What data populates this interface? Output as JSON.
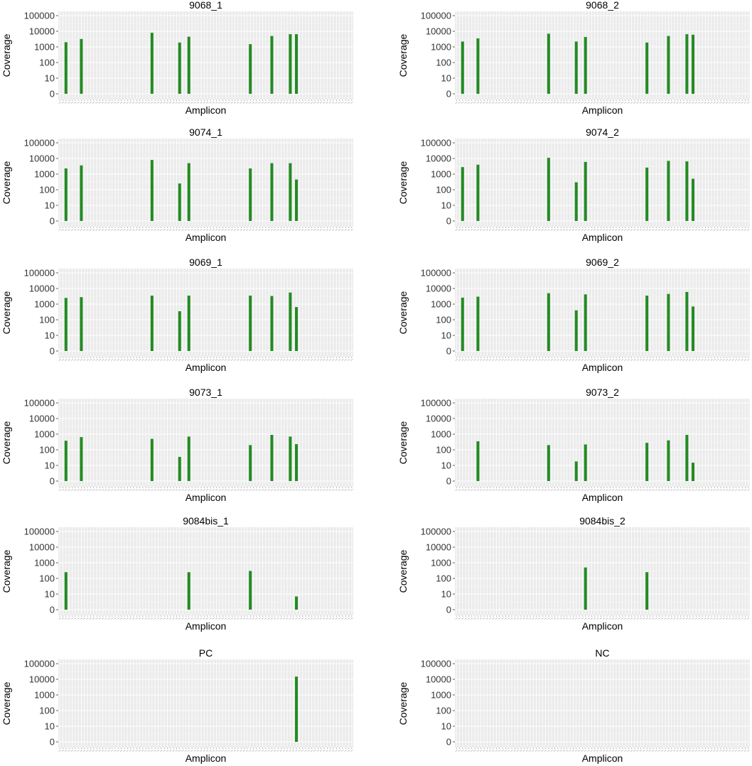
{
  "chart_data": {
    "type": "bar",
    "n_amplicons": 96,
    "x_label": "Amplicon",
    "y_label": "Coverage",
    "y_scale": "log",
    "y_ticks": [
      "0",
      "10",
      "100",
      "1000",
      "10000",
      "100000"
    ],
    "grid": true,
    "color": "#228B22",
    "panels": [
      {
        "title": "9068_1",
        "bars": [
          [
            2,
            2000
          ],
          [
            7,
            3200
          ],
          [
            30,
            8000
          ],
          [
            39,
            1900
          ],
          [
            42,
            4500
          ],
          [
            62,
            1500
          ],
          [
            69,
            5000
          ],
          [
            75,
            6500
          ],
          [
            77,
            6500
          ]
        ]
      },
      {
        "title": "9068_2",
        "bars": [
          [
            2,
            2200
          ],
          [
            7,
            3500
          ],
          [
            30,
            7000
          ],
          [
            39,
            2200
          ],
          [
            42,
            4300
          ],
          [
            62,
            1900
          ],
          [
            69,
            5000
          ],
          [
            75,
            6500
          ],
          [
            77,
            6000
          ]
        ]
      },
      {
        "title": "9074_1",
        "bars": [
          [
            2,
            2300
          ],
          [
            7,
            3600
          ],
          [
            30,
            8000
          ],
          [
            39,
            250
          ],
          [
            42,
            5000
          ],
          [
            62,
            2300
          ],
          [
            69,
            5000
          ],
          [
            75,
            5000
          ],
          [
            77,
            450
          ]
        ]
      },
      {
        "title": "9074_2",
        "bars": [
          [
            2,
            2800
          ],
          [
            7,
            4000
          ],
          [
            30,
            11000
          ],
          [
            39,
            300
          ],
          [
            42,
            6000
          ],
          [
            62,
            2600
          ],
          [
            69,
            7000
          ],
          [
            75,
            6500
          ],
          [
            77,
            500
          ]
        ]
      },
      {
        "title": "9069_1",
        "bars": [
          [
            2,
            2500
          ],
          [
            7,
            2800
          ],
          [
            30,
            3500
          ],
          [
            39,
            350
          ],
          [
            42,
            3500
          ],
          [
            62,
            3500
          ],
          [
            69,
            3300
          ],
          [
            75,
            5500
          ],
          [
            77,
            650
          ]
        ]
      },
      {
        "title": "9069_2",
        "bars": [
          [
            2,
            2600
          ],
          [
            7,
            3000
          ],
          [
            30,
            5000
          ],
          [
            39,
            400
          ],
          [
            42,
            4200
          ],
          [
            62,
            3500
          ],
          [
            69,
            4500
          ],
          [
            75,
            6000
          ],
          [
            77,
            700
          ]
        ]
      },
      {
        "title": "9073_1",
        "bars": [
          [
            2,
            380
          ],
          [
            7,
            650
          ],
          [
            30,
            500
          ],
          [
            39,
            35
          ],
          [
            42,
            700
          ],
          [
            62,
            200
          ],
          [
            69,
            900
          ],
          [
            75,
            700
          ],
          [
            77,
            230
          ]
        ]
      },
      {
        "title": "9073_2",
        "bars": [
          [
            7,
            350
          ],
          [
            30,
            200
          ],
          [
            39,
            18
          ],
          [
            42,
            220
          ],
          [
            62,
            280
          ],
          [
            69,
            400
          ],
          [
            75,
            900
          ],
          [
            77,
            15
          ]
        ]
      },
      {
        "title": "9084bis_1",
        "bars": [
          [
            2,
            250
          ],
          [
            42,
            250
          ],
          [
            62,
            300
          ],
          [
            77,
            7
          ]
        ]
      },
      {
        "title": "9084bis_2",
        "bars": [
          [
            42,
            500
          ],
          [
            62,
            250
          ]
        ]
      },
      {
        "title": "PC",
        "bars": [
          [
            77,
            15000
          ]
        ]
      },
      {
        "title": "NC",
        "bars": []
      }
    ]
  }
}
